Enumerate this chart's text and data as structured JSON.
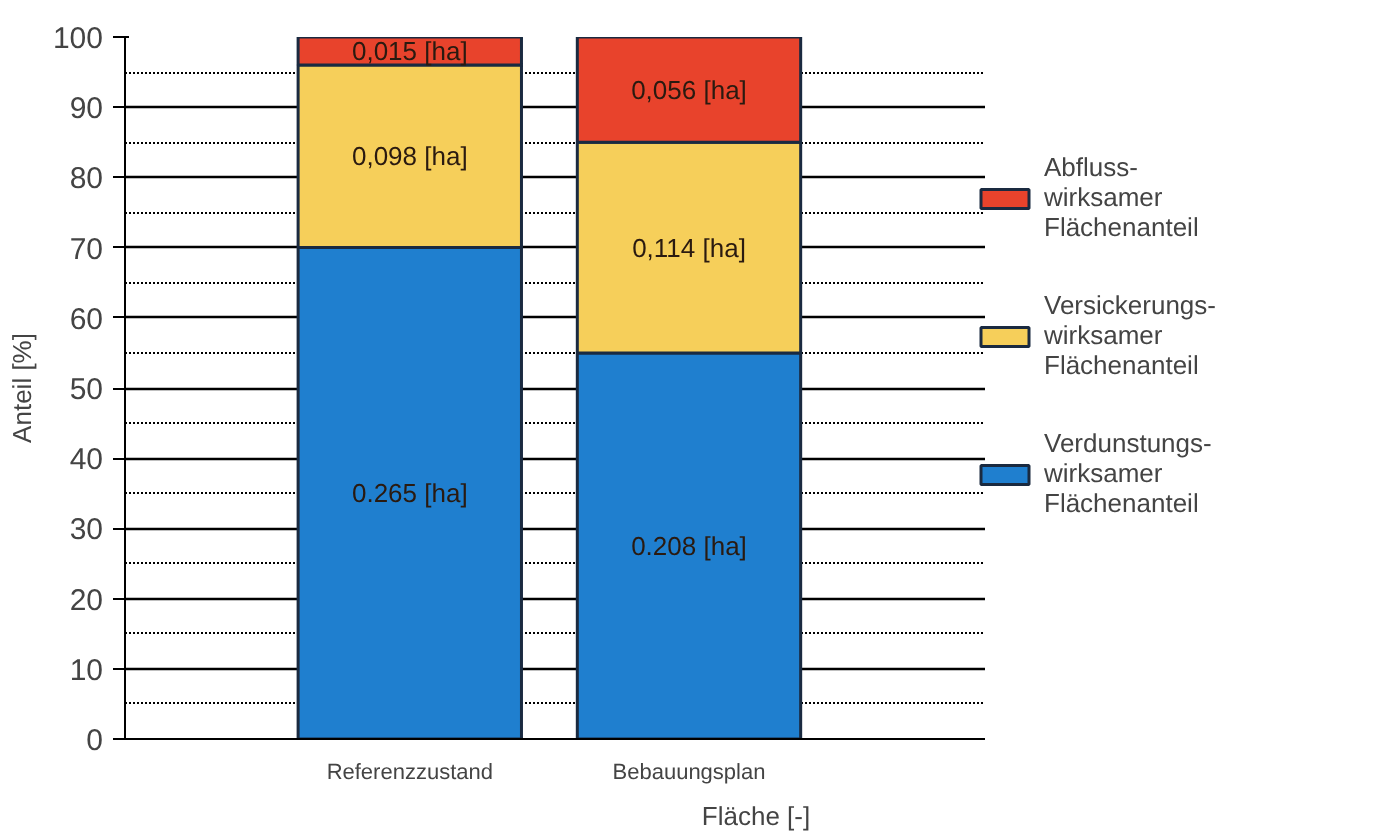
{
  "chart_data": {
    "type": "bar",
    "stacked": true,
    "xlabel": "Fläche [-]",
    "ylabel": "Anteil [%]",
    "categories": [
      "Referenzzustand",
      "Bebauungsplan"
    ],
    "series": [
      {
        "name": "Verdunstungs- wirksamer Flächenanteil",
        "color": "#1f7fcf",
        "values": [
          70,
          55
        ]
      },
      {
        "name": "Versickerungs- wirksamer Flächenanteil",
        "color": "#f6cf5a",
        "values": [
          26,
          30
        ]
      },
      {
        "name": "Abfluss- wirksamer Flächenanteil",
        "color": "#e8432c",
        "values": [
          4,
          15
        ]
      }
    ],
    "annotations": [
      "0.265 [ha]",
      "0.208 [ha]",
      "0,098 [ha]",
      "0,114 [ha]",
      "0,015 [ha]",
      "0,056 [ha]"
    ],
    "ylim": [
      0,
      100
    ],
    "yticks": [
      0,
      10,
      20,
      30,
      40,
      50,
      60,
      70,
      80,
      90,
      100
    ],
    "grid": "y",
    "legend": "right"
  }
}
